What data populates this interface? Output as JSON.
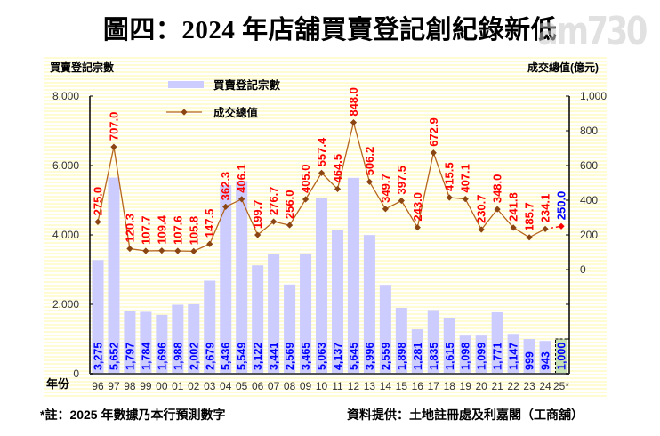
{
  "title": "圖四：2024 年店舖買賣登記創紀錄新低",
  "watermark": "am730",
  "left_axis_title": "買賣登記宗數",
  "right_axis_title": "成交總值(億元)",
  "x_axis_title": "年份",
  "footnote": "*註：2025 年數據乃本行預測數字",
  "source": "資料提供：土地註冊處及利嘉閣（工商舖）",
  "colors": {
    "bar": "#ccccff",
    "bar_forecast": "#c6e0b4",
    "bar_label": "#0000ff",
    "line": "#b5651d",
    "line_marker": "#8b4513",
    "line_label": "#ff0000",
    "forecast_line_label": "#0000ff"
  },
  "chart_data": {
    "type": "bar+line",
    "title": "圖四：2024 年店舖買賣登記創紀錄新低",
    "xlabel": "年份",
    "categories": [
      "96",
      "97",
      "98",
      "99",
      "00",
      "01",
      "02",
      "03",
      "04",
      "05",
      "06",
      "07",
      "08",
      "09",
      "10",
      "11",
      "12",
      "13",
      "14",
      "15",
      "16",
      "17",
      "18",
      "19",
      "20",
      "21",
      "22",
      "23",
      "24",
      "25*"
    ],
    "series": [
      {
        "name": "買賣登記宗數",
        "type": "bar",
        "axis": "left",
        "values": [
          3275,
          5652,
          1797,
          1784,
          1696,
          1988,
          2002,
          2679,
          5436,
          5549,
          3122,
          3441,
          2569,
          3465,
          5063,
          4137,
          5645,
          3996,
          2559,
          1898,
          1281,
          1835,
          1615,
          1098,
          1099,
          1771,
          1147,
          999,
          943,
          1000
        ],
        "labels": [
          "3,275",
          "5,652",
          "1,797",
          "1,784",
          "1,696",
          "1,988",
          "2,002",
          "2,679",
          "5,436",
          "5,549",
          "3,122",
          "3,441",
          "2,569",
          "3,465",
          "5,063",
          "4,137",
          "5,645",
          "3,996",
          "2,559",
          "1,898",
          "1,281",
          "1,835",
          "1,615",
          "1,098",
          "1,099",
          "1,771",
          "1,147",
          "999",
          "943",
          "1,000"
        ],
        "forecast_index": 29
      },
      {
        "name": "成交總值",
        "type": "line",
        "axis": "right",
        "values": [
          275.0,
          707.0,
          120.3,
          107.7,
          109.4,
          107.6,
          105.8,
          147.5,
          362.3,
          406.1,
          199.7,
          276.7,
          256.0,
          405.0,
          557.4,
          464.5,
          848.0,
          506.2,
          349.7,
          397.5,
          243.0,
          672.9,
          415.5,
          407.1,
          230.7,
          348.0,
          241.8,
          185.7,
          234.1,
          250.0
        ],
        "labels": [
          "275.0",
          "707.0",
          "120.3",
          "107.7",
          "109.4",
          "107.6",
          "105.8",
          "147.5",
          "362.3",
          "406.1",
          "199.7",
          "276.7",
          "256.0",
          "405.0",
          "557.4",
          "464.5",
          "848.0",
          "506.2",
          "349.7",
          "397.5",
          "243.0",
          "672.9",
          "415.5",
          "407.1",
          "230.7",
          "348.0",
          "241.8",
          "185.7",
          "234.1",
          "250.0"
        ],
        "forecast_index": 29
      }
    ],
    "left_axis": {
      "label": "買賣登記宗數",
      "ylim": [
        0,
        8000
      ],
      "ticks": [
        "0",
        "2,000",
        "4,000",
        "6,000",
        "8,000"
      ]
    },
    "right_axis": {
      "label": "成交總值(億元)",
      "ylim": [
        -600,
        1000
      ],
      "ticks": [
        "0",
        "200",
        "400",
        "600",
        "800",
        "1,000"
      ]
    },
    "legend": [
      {
        "name": "買賣登記宗數",
        "kind": "bar"
      },
      {
        "name": "成交總值",
        "kind": "line"
      }
    ],
    "legend_position": "top-left inside",
    "grid": false
  }
}
